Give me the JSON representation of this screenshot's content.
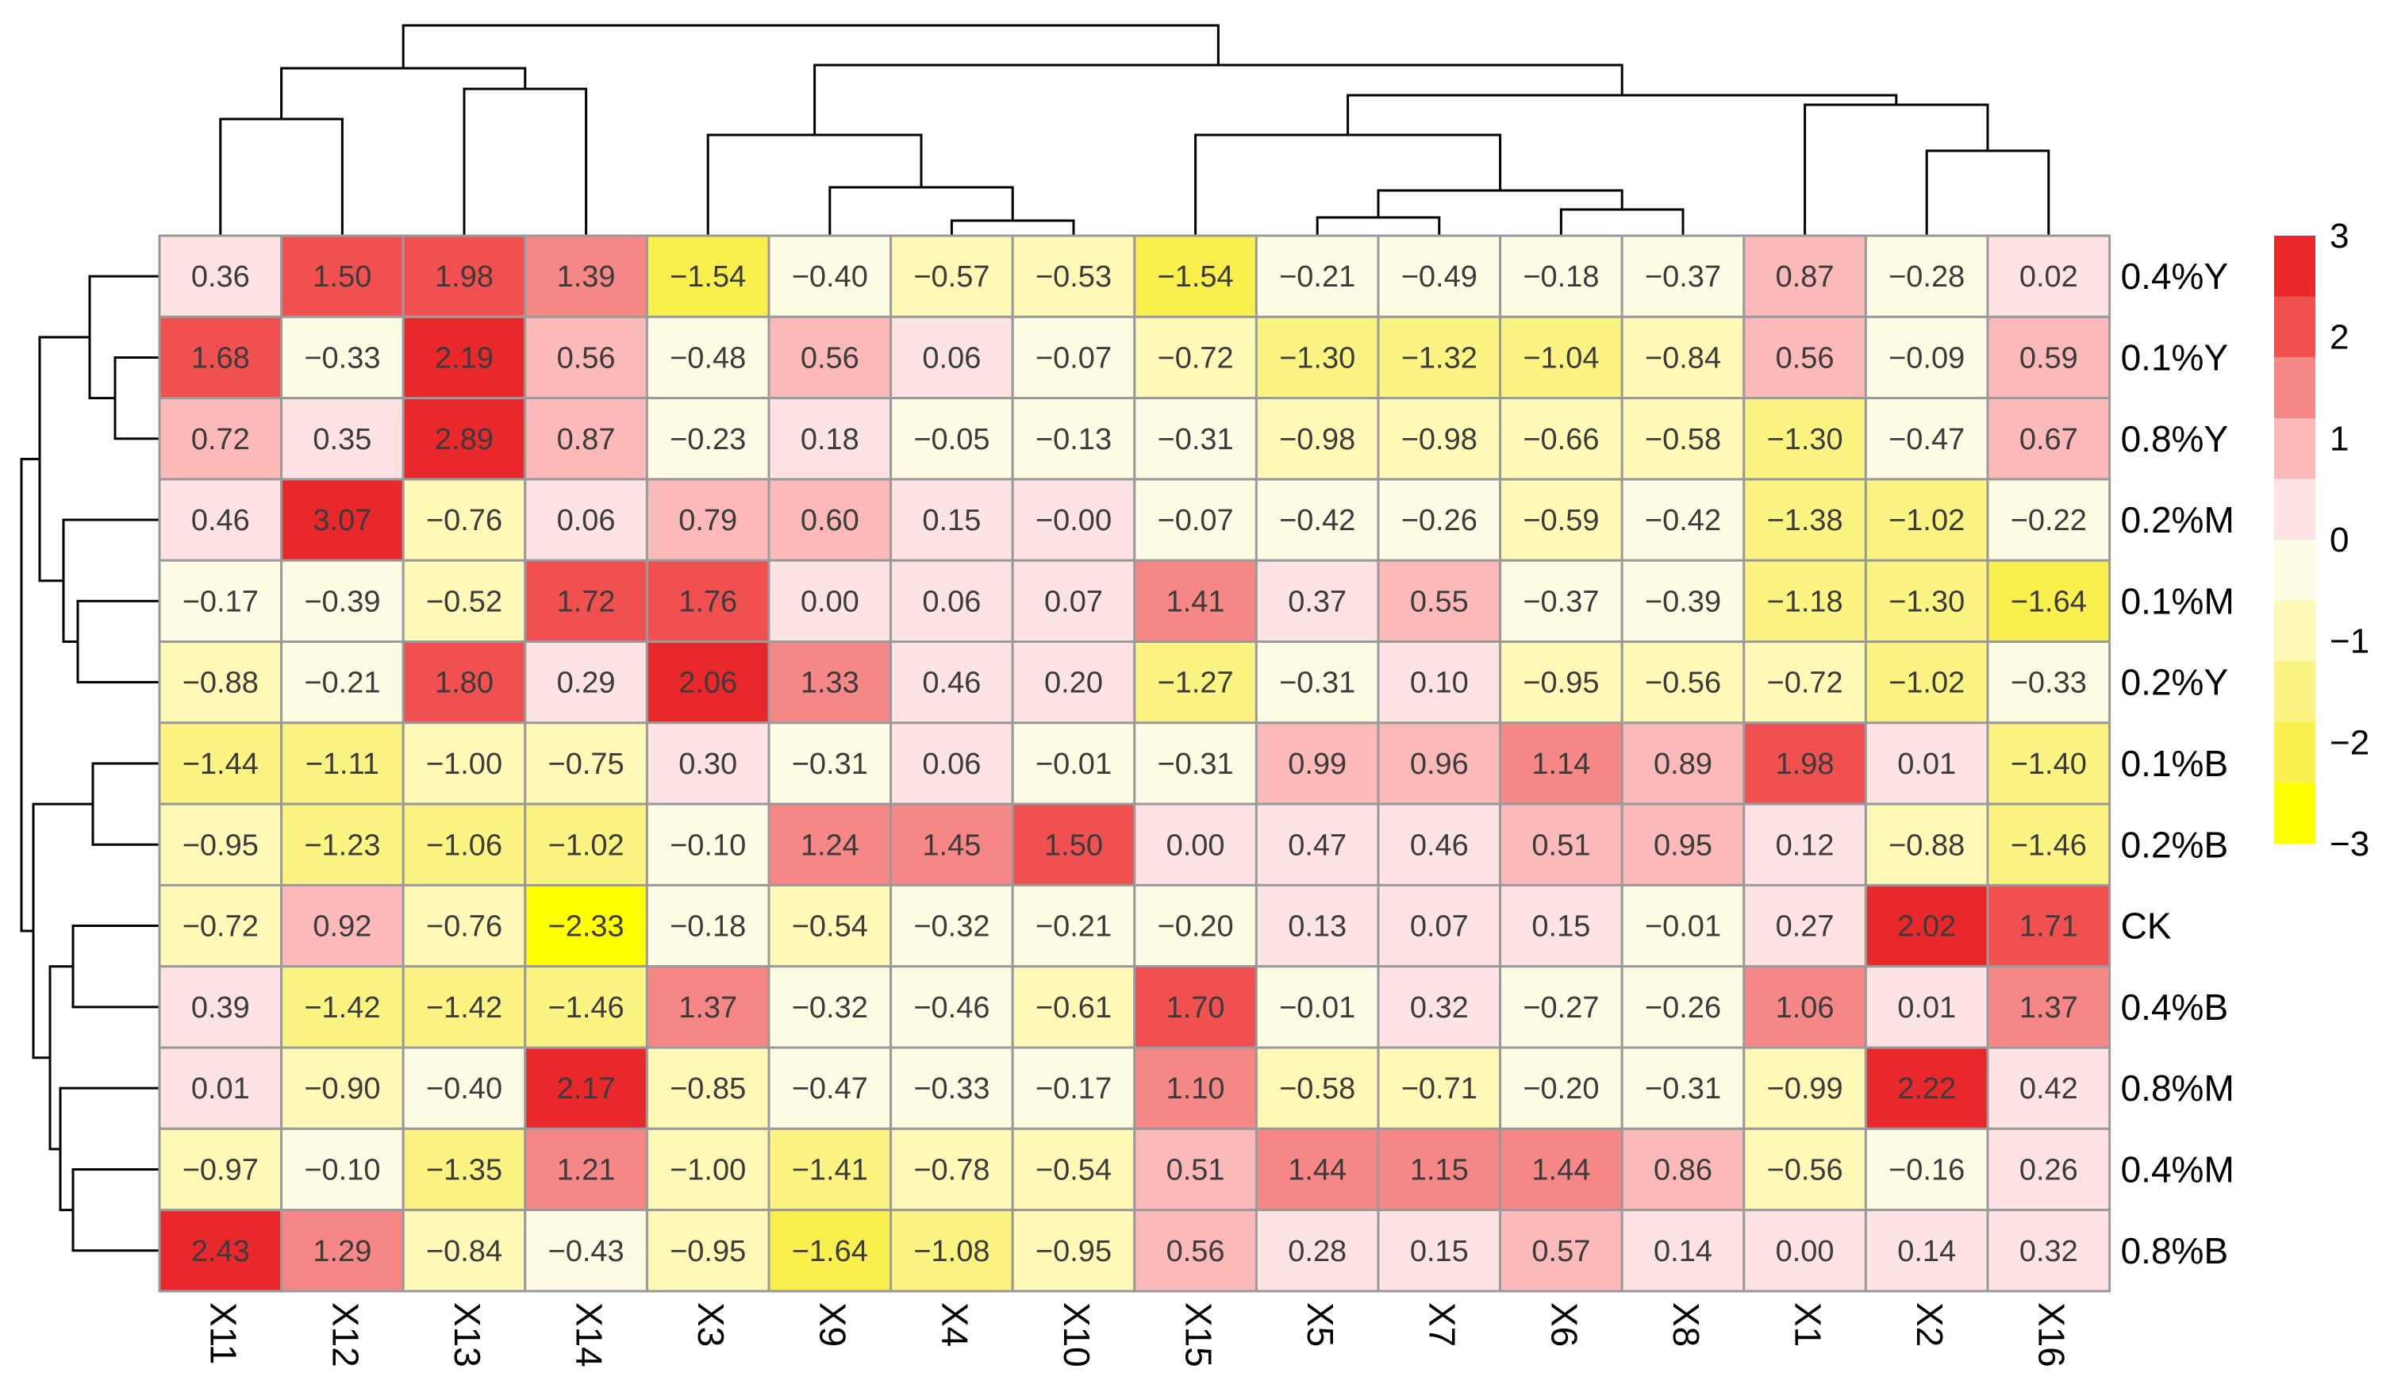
{
  "chart_data": {
    "type": "heatmap",
    "title": "",
    "columns": [
      "X11",
      "X12",
      "X13",
      "X14",
      "X3",
      "X9",
      "X4",
      "X10",
      "X15",
      "X5",
      "X7",
      "X6",
      "X8",
      "X1",
      "X2",
      "X16"
    ],
    "rows": [
      "0.4%Y",
      "0.1%Y",
      "0.8%Y",
      "0.2%M",
      "0.1%M",
      "0.2%Y",
      "0.1%B",
      "0.2%B",
      "CK",
      "0.4%B",
      "0.8%M",
      "0.4%M",
      "0.8%B"
    ],
    "values": [
      [
        0.36,
        1.5,
        1.98,
        1.39,
        -1.54,
        -0.4,
        -0.57,
        -0.53,
        -1.54,
        -0.21,
        -0.49,
        -0.18,
        -0.37,
        0.87,
        -0.28,
        0.02
      ],
      [
        1.68,
        -0.33,
        2.19,
        0.56,
        -0.48,
        0.56,
        0.06,
        -0.07,
        -0.72,
        -1.3,
        -1.32,
        -1.04,
        -0.84,
        0.56,
        -0.09,
        0.59
      ],
      [
        0.72,
        0.35,
        2.89,
        0.87,
        -0.23,
        0.18,
        -0.05,
        -0.13,
        -0.31,
        -0.98,
        -0.98,
        -0.66,
        -0.58,
        -1.3,
        -0.47,
        0.67
      ],
      [
        0.46,
        3.07,
        -0.76,
        0.06,
        0.79,
        0.6,
        0.15,
        -0.0,
        -0.07,
        -0.42,
        -0.26,
        -0.59,
        -0.42,
        -1.38,
        -1.02,
        -0.22
      ],
      [
        -0.17,
        -0.39,
        -0.52,
        1.72,
        1.76,
        0.0,
        0.06,
        0.07,
        1.41,
        0.37,
        0.55,
        -0.37,
        -0.39,
        -1.18,
        -1.3,
        -1.64
      ],
      [
        -0.88,
        -0.21,
        1.8,
        0.29,
        2.06,
        1.33,
        0.46,
        0.2,
        -1.27,
        -0.31,
        0.1,
        -0.95,
        -0.56,
        -0.72,
        -1.02,
        -0.33
      ],
      [
        -1.44,
        -1.11,
        -1.0,
        -0.75,
        0.3,
        -0.31,
        0.06,
        -0.01,
        -0.31,
        0.99,
        0.96,
        1.14,
        0.89,
        1.98,
        0.01,
        -1.4
      ],
      [
        -0.95,
        -1.23,
        -1.06,
        -1.02,
        -0.1,
        1.24,
        1.45,
        1.5,
        0.0,
        0.47,
        0.46,
        0.51,
        0.95,
        0.12,
        -0.88,
        -1.46
      ],
      [
        -0.72,
        0.92,
        -0.76,
        -2.33,
        -0.18,
        -0.54,
        -0.32,
        -0.21,
        -0.2,
        0.13,
        0.07,
        0.15,
        -0.01,
        0.27,
        2.02,
        1.71
      ],
      [
        0.39,
        -1.42,
        -1.42,
        -1.46,
        1.37,
        -0.32,
        -0.46,
        -0.61,
        1.7,
        -0.01,
        0.32,
        -0.27,
        -0.26,
        1.06,
        0.01,
        1.37
      ],
      [
        0.01,
        -0.9,
        -0.4,
        2.17,
        -0.85,
        -0.47,
        -0.33,
        -0.17,
        1.1,
        -0.58,
        -0.71,
        -0.2,
        -0.31,
        -0.99,
        2.22,
        0.42
      ],
      [
        -0.97,
        -0.1,
        -1.35,
        1.21,
        -1.0,
        -1.41,
        -0.78,
        -0.54,
        0.51,
        1.44,
        1.15,
        1.44,
        0.86,
        -0.56,
        -0.16,
        0.26
      ],
      [
        2.43,
        1.29,
        -0.84,
        -0.43,
        -0.95,
        -1.64,
        -1.08,
        -0.95,
        0.56,
        0.28,
        0.15,
        0.57,
        0.14,
        0.0,
        0.14,
        0.32
      ]
    ],
    "value_range": [
      -3,
      3
    ],
    "color_bins": [
      {
        "min": 2,
        "max": 3,
        "color": "#E8282A"
      },
      {
        "min": 1.5,
        "max": 2,
        "color": "#F05050"
      },
      {
        "min": 1,
        "max": 1.5,
        "color": "#F68787"
      },
      {
        "min": 0.5,
        "max": 1,
        "color": "#FBB9B9"
      },
      {
        "min": 0,
        "max": 0.5,
        "color": "#FDE3E4"
      },
      {
        "min": -0.5,
        "max": 0,
        "color": "#FFFCE6"
      },
      {
        "min": -1,
        "max": -0.5,
        "color": "#FEF9B6"
      },
      {
        "min": -1.5,
        "max": -1,
        "color": "#FCF482"
      },
      {
        "min": -2,
        "max": -1.5,
        "color": "#F9EF4D"
      },
      {
        "min": -3,
        "max": -2,
        "color": "#FFFF00"
      }
    ],
    "legend_ticks": [
      "3",
      "2",
      "1",
      "0",
      "−1",
      "−2",
      "−3"
    ],
    "grid_color": "#9a9a9a",
    "dendrogram_color": "#000000"
  }
}
